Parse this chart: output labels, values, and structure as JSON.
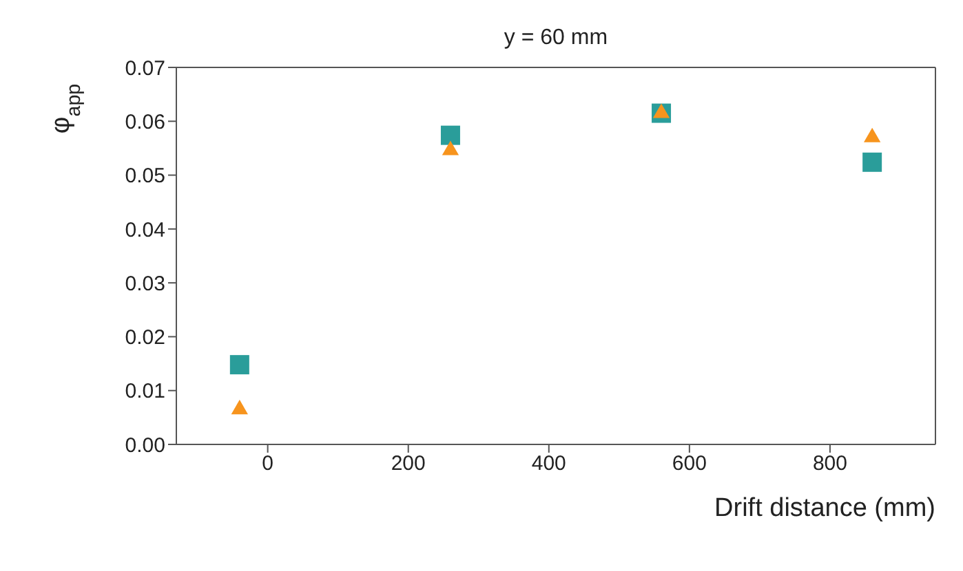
{
  "chart_data": {
    "type": "scatter",
    "title": "y = 60 mm",
    "xlabel": "Drift distance (mm)",
    "ylabel": "φ$_{app}$",
    "x": [
      -40,
      260,
      560,
      860
    ],
    "series": [
      {
        "color": "#2a9d9a",
        "marker": "square",
        "values": [
          0.0148,
          0.0574,
          0.0615,
          0.0524
        ]
      },
      {
        "color": "#f7941d",
        "marker": "triangle",
        "values": [
          0.0065,
          0.0546,
          0.0615,
          0.057
        ]
      }
    ],
    "xlim": [
      -130,
      950
    ],
    "xticks": [
      0,
      200,
      400,
      600,
      800
    ],
    "ylim": [
      0,
      0.07
    ],
    "yticks": [
      {
        "value": 0,
        "label": "0.00"
      },
      {
        "value": 0.01,
        "label": "0.01"
      },
      {
        "value": 0.02,
        "label": "0.02"
      },
      {
        "value": 0.03,
        "label": "0.03"
      },
      {
        "value": 0.04,
        "label": "0.04"
      },
      {
        "value": 0.05,
        "label": "0.05"
      },
      {
        "value": 0.06,
        "label": "0.06"
      },
      {
        "value": 0.07,
        "label": "0.07"
      }
    ],
    "tick_labels": "xy"
  }
}
